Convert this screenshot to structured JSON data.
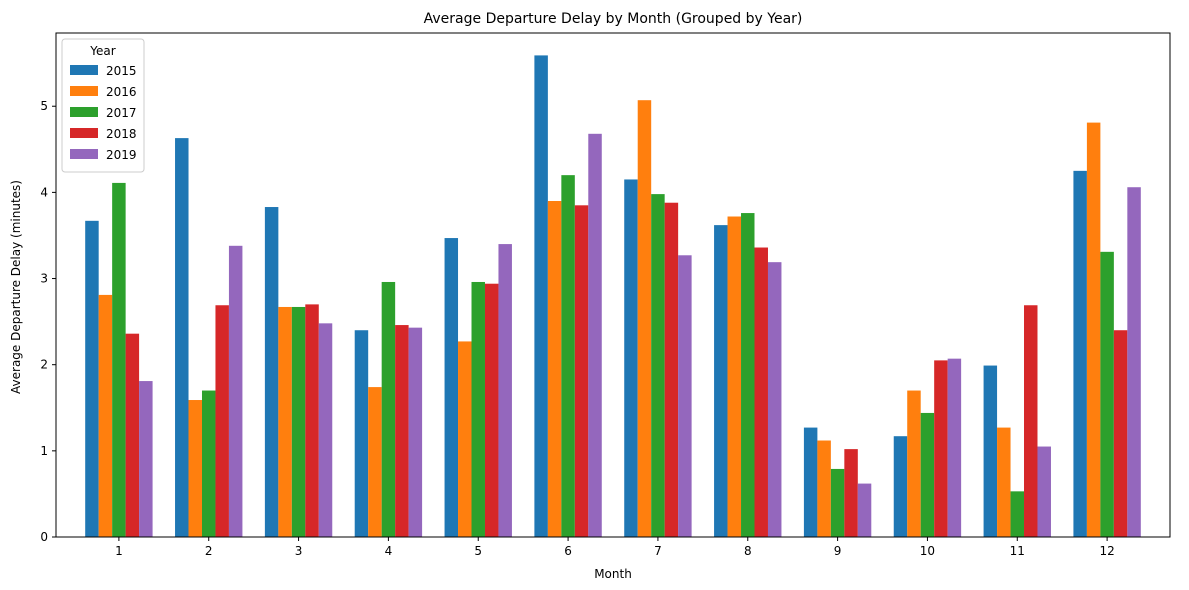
{
  "chart_data": {
    "type": "bar",
    "title": "Average Departure Delay by Month (Grouped by Year)",
    "xlabel": "Month",
    "ylabel": "Average Departure Delay (minutes)",
    "categories": [
      "1",
      "2",
      "3",
      "4",
      "5",
      "6",
      "7",
      "8",
      "9",
      "10",
      "11",
      "12"
    ],
    "ylim": [
      0,
      5.85
    ],
    "yticks": [
      0,
      1,
      2,
      3,
      4,
      5
    ],
    "grid": false,
    "legend": {
      "title": "Year",
      "placement": "top-left"
    },
    "series": [
      {
        "name": "2015",
        "color": "#1f77b4",
        "values": [
          3.67,
          4.63,
          3.83,
          2.4,
          3.47,
          5.59,
          4.15,
          3.62,
          1.27,
          1.17,
          1.99,
          4.25
        ]
      },
      {
        "name": "2016",
        "color": "#ff7f0e",
        "values": [
          2.81,
          1.59,
          2.67,
          1.74,
          2.27,
          3.9,
          5.07,
          3.72,
          1.12,
          1.7,
          1.27,
          4.81
        ]
      },
      {
        "name": "2017",
        "color": "#2ca02c",
        "values": [
          4.11,
          1.7,
          2.67,
          2.96,
          2.96,
          4.2,
          3.98,
          3.76,
          0.79,
          1.44,
          0.53,
          3.31
        ]
      },
      {
        "name": "2018",
        "color": "#d62728",
        "values": [
          2.36,
          2.69,
          2.7,
          2.46,
          2.94,
          3.85,
          3.88,
          3.36,
          1.02,
          2.05,
          2.69,
          2.4
        ]
      },
      {
        "name": "2019",
        "color": "#9467bd",
        "values": [
          1.81,
          3.38,
          2.48,
          2.43,
          3.4,
          4.68,
          3.27,
          3.19,
          0.62,
          2.07,
          1.05,
          4.06
        ]
      }
    ]
  }
}
